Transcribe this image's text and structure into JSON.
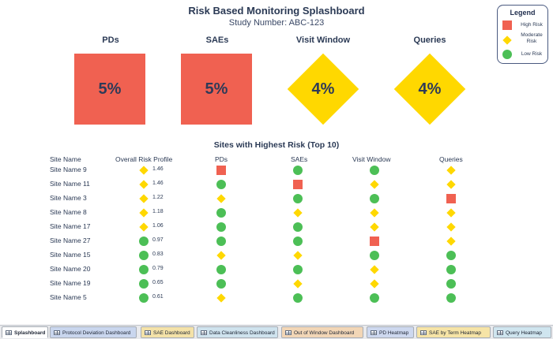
{
  "header": {
    "title": "Risk Based Monitoring Splashboard",
    "subtitle": "Study Number: ABC-123"
  },
  "legend": {
    "title": "Legend",
    "items": [
      {
        "label": "High Risk",
        "shape": "square"
      },
      {
        "label": "Moderate Risk",
        "shape": "diamond"
      },
      {
        "label": "Low Risk",
        "shape": "circle"
      }
    ]
  },
  "colors": {
    "high_risk": "#f06151",
    "moderate_risk": "#ffd800",
    "low_risk": "#4cbf56"
  },
  "kpis": [
    {
      "label": "PDs",
      "value": "5%",
      "level": "high"
    },
    {
      "label": "SAEs",
      "value": "5%",
      "level": "high"
    },
    {
      "label": "Visit Window",
      "value": "4%",
      "level": "moderate"
    },
    {
      "label": "Queries",
      "value": "4%",
      "level": "moderate"
    }
  ],
  "table": {
    "title": "Sites with Highest Risk (Top 10)",
    "headers": {
      "site": "Site Name",
      "overall": "Overall Risk Profile",
      "pds": "PDs",
      "saes": "SAEs",
      "visit": "Visit Window",
      "queries": "Queries"
    },
    "rows": [
      {
        "site": "Site Name 9",
        "score": "1.46",
        "overall": "moderate",
        "pds": "high",
        "saes": "low",
        "visit": "low",
        "queries": "moderate"
      },
      {
        "site": "Site Name 11",
        "score": "1.46",
        "overall": "moderate",
        "pds": "low",
        "saes": "high",
        "visit": "moderate",
        "queries": "moderate"
      },
      {
        "site": "Site Name 3",
        "score": "1.22",
        "overall": "moderate",
        "pds": "moderate",
        "saes": "low",
        "visit": "low",
        "queries": "high"
      },
      {
        "site": "Site Name 8",
        "score": "1.18",
        "overall": "moderate",
        "pds": "low",
        "saes": "moderate",
        "visit": "moderate",
        "queries": "moderate"
      },
      {
        "site": "Site Name 17",
        "score": "1.06",
        "overall": "moderate",
        "pds": "low",
        "saes": "low",
        "visit": "moderate",
        "queries": "moderate"
      },
      {
        "site": "Site Name 27",
        "score": "0.97",
        "overall": "low",
        "pds": "low",
        "saes": "low",
        "visit": "high",
        "queries": "moderate"
      },
      {
        "site": "Site Name 15",
        "score": "0.83",
        "overall": "low",
        "pds": "moderate",
        "saes": "moderate",
        "visit": "low",
        "queries": "low"
      },
      {
        "site": "Site Name 20",
        "score": "0.79",
        "overall": "low",
        "pds": "low",
        "saes": "low",
        "visit": "moderate",
        "queries": "low"
      },
      {
        "site": "Site Name 19",
        "score": "0.65",
        "overall": "low",
        "pds": "low",
        "saes": "moderate",
        "visit": "moderate",
        "queries": "low"
      },
      {
        "site": "Site Name 5",
        "score": "0.61",
        "overall": "low",
        "pds": "moderate",
        "saes": "low",
        "visit": "low",
        "queries": "low"
      }
    ]
  },
  "tabs": [
    {
      "label": "Splashboard",
      "color": "#ffffff",
      "active": true
    },
    {
      "label": "Protocol Deviation Dashboard",
      "color": "#c9d6ee",
      "active": false
    },
    {
      "label": "SAE Dashboard",
      "color": "#f4e2a8",
      "active": false
    },
    {
      "label": "Data Cleanliness Dashboard",
      "color": "#cfe3ee",
      "active": false
    },
    {
      "label": "Out of Window Dashboard",
      "color": "#f2d6b6",
      "active": false
    },
    {
      "label": "PD Heatmap",
      "color": "#cdd8ef",
      "active": false
    },
    {
      "label": "SAE by Term Heatmap",
      "color": "#f6e4a6",
      "active": false
    },
    {
      "label": "Query Heatmap",
      "color": "#cfe5ef",
      "active": false
    }
  ]
}
